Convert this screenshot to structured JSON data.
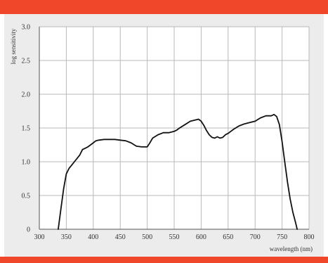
{
  "colors": {
    "accent_bar": "#f0462a",
    "panel_bg": "#ececec",
    "plot_bg": "#ffffff",
    "grid": "#b8b8b8",
    "axis": "#555555",
    "line": "#111111"
  },
  "chart_data": {
    "type": "line",
    "xlabel": "wavelength (nm)",
    "ylabel": "log sensitivity",
    "xlim": [
      300,
      800
    ],
    "ylim": [
      0,
      3.0
    ],
    "xticks": [
      300,
      350,
      400,
      450,
      500,
      550,
      600,
      650,
      700,
      750,
      800
    ],
    "yticks": [
      "0",
      "0.5",
      "1.0",
      "1.5",
      "2.0",
      "2.5",
      "3.0"
    ],
    "grid": true,
    "series": [
      {
        "x": [
          335,
          340,
          345,
          350,
          355,
          360,
          365,
          370,
          375,
          380,
          385,
          390,
          395,
          400,
          405,
          410,
          420,
          430,
          440,
          450,
          460,
          470,
          480,
          490,
          500,
          505,
          510,
          520,
          530,
          540,
          550,
          555,
          560,
          570,
          580,
          590,
          595,
          600,
          605,
          610,
          615,
          620,
          625,
          630,
          635,
          640,
          645,
          650,
          655,
          660,
          670,
          680,
          690,
          700,
          710,
          720,
          730,
          735,
          740,
          745,
          750,
          755,
          760,
          765,
          770,
          775,
          778
        ],
        "y": [
          0.0,
          0.3,
          0.6,
          0.82,
          0.9,
          0.95,
          1.0,
          1.05,
          1.1,
          1.18,
          1.2,
          1.22,
          1.25,
          1.28,
          1.31,
          1.32,
          1.33,
          1.33,
          1.33,
          1.32,
          1.31,
          1.28,
          1.23,
          1.22,
          1.22,
          1.28,
          1.35,
          1.4,
          1.43,
          1.43,
          1.45,
          1.47,
          1.5,
          1.55,
          1.6,
          1.62,
          1.63,
          1.6,
          1.54,
          1.46,
          1.4,
          1.36,
          1.35,
          1.37,
          1.35,
          1.36,
          1.4,
          1.42,
          1.45,
          1.48,
          1.53,
          1.56,
          1.58,
          1.6,
          1.65,
          1.68,
          1.68,
          1.7,
          1.67,
          1.55,
          1.3,
          1.0,
          0.7,
          0.45,
          0.25,
          0.1,
          0.0
        ]
      }
    ]
  }
}
